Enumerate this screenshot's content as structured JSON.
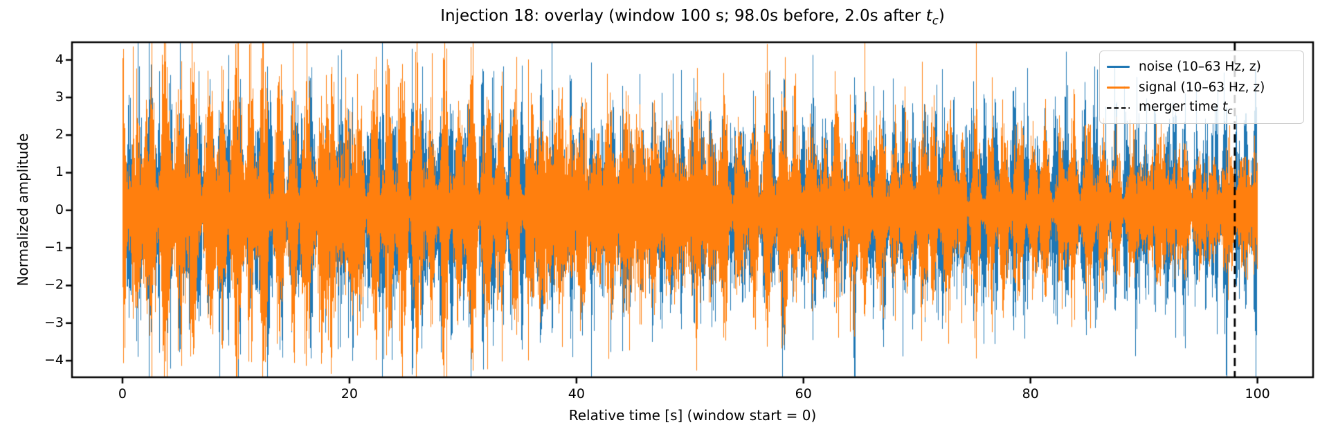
{
  "figure": {
    "title_prefix": "Injection 18: overlay (window 100 s; 98.0s before, 2.0s after ",
    "title_var": "t",
    "title_var_sub": "c",
    "title_suffix": ")",
    "xlabel": "Relative time [s] (window start = 0)",
    "ylabel": "Normalized amplitude"
  },
  "legend": {
    "noise_label": "noise (10–63 Hz, z)",
    "signal_label": "signal (10–63 Hz, z)",
    "merger_prefix": "merger time ",
    "merger_var": "t",
    "merger_var_sub": "c"
  },
  "chart_data": {
    "type": "line",
    "title": "Injection 18: overlay (window 100 s; 98.0s before, 2.0s after t_c)",
    "xlabel": "Relative time [s] (window start = 0)",
    "ylabel": "Normalized amplitude",
    "xlim": [
      -4.45,
      104.9
    ],
    "ylim": [
      -4.44,
      4.47
    ],
    "xticks": [
      0,
      20,
      40,
      60,
      80,
      100
    ],
    "xtick_labels": [
      "0",
      "20",
      "40",
      "60",
      "80",
      "100"
    ],
    "yticks": [
      -4,
      -3,
      -2,
      -1,
      0,
      1,
      2,
      3,
      4
    ],
    "ytick_labels": [
      "−4",
      "−3",
      "−2",
      "−1",
      "0",
      "1",
      "2",
      "3",
      "4"
    ],
    "grid": false,
    "legend_position": "upper right",
    "window_seconds": 100,
    "seconds_before": 98.0,
    "seconds_after": 2.0,
    "band_hz": [
      10,
      63
    ],
    "zscored": true,
    "time_range": [
      0,
      100
    ],
    "merger_line": {
      "x": 98.0,
      "color": "#000000",
      "style": "dashed"
    },
    "series": [
      {
        "name": "noise (10–63 Hz, z)",
        "color": "#1f77b4",
        "seed": 101,
        "envelope_t": [
          0,
          5,
          10,
          15,
          20,
          25,
          30,
          35,
          40,
          45,
          50,
          55,
          60,
          65,
          70,
          75,
          80,
          85,
          90,
          95,
          100
        ],
        "envelope_sigma": [
          1.02,
          1.0,
          0.99,
          0.97,
          0.96,
          0.95,
          0.94,
          0.93,
          0.92,
          0.91,
          0.9,
          0.89,
          0.88,
          0.87,
          0.86,
          0.86,
          0.85,
          0.85,
          0.84,
          0.86,
          0.84
        ]
      },
      {
        "name": "signal (10–63 Hz, z)",
        "color": "#ff7f0e",
        "seed": 202,
        "envelope_t": [
          0,
          5,
          10,
          15,
          20,
          25,
          30,
          35,
          40,
          45,
          50,
          55,
          60,
          65,
          70,
          75,
          80,
          85,
          90,
          95,
          100
        ],
        "envelope_sigma": [
          1.22,
          1.18,
          1.15,
          1.12,
          1.09,
          1.06,
          1.03,
          1.0,
          0.98,
          0.96,
          0.93,
          0.9,
          0.87,
          0.84,
          0.81,
          0.77,
          0.73,
          0.69,
          0.64,
          0.6,
          0.56
        ]
      }
    ]
  },
  "colors": {
    "background": "#ffffff",
    "frame": "#000000",
    "tick": "#000000",
    "text": "#000000",
    "legend_border": "#cccccc"
  }
}
